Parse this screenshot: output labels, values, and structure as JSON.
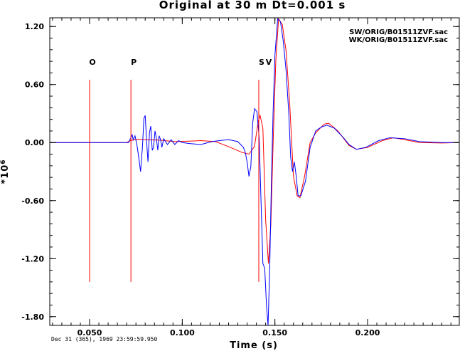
{
  "chart_data": {
    "type": "line",
    "title": "Original at 30 m Dt=0.001 s",
    "xlabel": "Time (s)",
    "ylabel": "*10",
    "ylabel_exponent": "6",
    "xlim": [
      0.0285,
      0.2495
    ],
    "ylim": [
      -1.89,
      1.29
    ],
    "x_ticks": [
      0.05,
      0.1,
      0.15,
      0.2
    ],
    "x_tick_labels": [
      "0.050",
      "0.100",
      "0.150",
      "0.200"
    ],
    "y_ticks": [
      1.2,
      0.6,
      0.0,
      -0.6,
      -1.2,
      -1.8
    ],
    "y_tick_labels": [
      "1.20",
      "0.60",
      "0.00",
      "-0.60",
      "-1.20",
      "-1.80"
    ],
    "date_label": "Dec 31 (365), 1969 23:59:59.950",
    "legend_position": "top-right",
    "markers": [
      {
        "label": "O",
        "x": 0.05,
        "y_top": 0.65,
        "y_bottom": -1.44
      },
      {
        "label": "P",
        "x": 0.0723,
        "y_top": 0.65,
        "y_bottom": -1.44
      },
      {
        "label": "S",
        "x": 0.1413,
        "y_top": 0.65,
        "y_bottom": -1.44
      }
    ],
    "extra_phase_label": "V",
    "series": [
      {
        "name": "SW/ORIG/B01511ZVF.sac",
        "color": "#ff0000",
        "points": [
          [
            0.0285,
            0.0
          ],
          [
            0.07,
            0.0
          ],
          [
            0.072,
            0.02
          ],
          [
            0.076,
            0.035
          ],
          [
            0.08,
            0.03
          ],
          [
            0.088,
            0.025
          ],
          [
            0.096,
            0.01
          ],
          [
            0.104,
            0.015
          ],
          [
            0.11,
            0.02
          ],
          [
            0.118,
            0.01
          ],
          [
            0.126,
            -0.05
          ],
          [
            0.132,
            -0.1
          ],
          [
            0.136,
            -0.12
          ],
          [
            0.139,
            -0.04
          ],
          [
            0.141,
            0.22
          ],
          [
            0.142,
            0.28
          ],
          [
            0.1435,
            0.15
          ],
          [
            0.145,
            -0.8
          ],
          [
            0.1465,
            -1.25
          ],
          [
            0.1478,
            -0.85
          ],
          [
            0.1492,
            0.1
          ],
          [
            0.1505,
            0.85
          ],
          [
            0.152,
            1.28
          ],
          [
            0.154,
            1.22
          ],
          [
            0.156,
            0.95
          ],
          [
            0.158,
            0.4
          ],
          [
            0.16,
            -0.35
          ],
          [
            0.162,
            -0.55
          ],
          [
            0.1635,
            -0.57
          ],
          [
            0.166,
            -0.35
          ],
          [
            0.169,
            0.0
          ],
          [
            0.172,
            0.1
          ],
          [
            0.1765,
            0.19
          ],
          [
            0.179,
            0.2
          ],
          [
            0.184,
            0.12
          ],
          [
            0.19,
            -0.03
          ],
          [
            0.194,
            -0.07
          ],
          [
            0.2,
            -0.05
          ],
          [
            0.208,
            0.02
          ],
          [
            0.214,
            0.05
          ],
          [
            0.22,
            0.03
          ],
          [
            0.228,
            0.0
          ],
          [
            0.24,
            -0.005
          ],
          [
            0.2495,
            0.0
          ]
        ]
      },
      {
        "name": "WK/ORIG/B01511ZVF.sac",
        "color": "#0000ff",
        "points": [
          [
            0.0285,
            0.0
          ],
          [
            0.071,
            0.0
          ],
          [
            0.072,
            0.04
          ],
          [
            0.073,
            0.08
          ],
          [
            0.0735,
            0.03
          ],
          [
            0.0745,
            0.07
          ],
          [
            0.0755,
            -0.02
          ],
          [
            0.0765,
            -0.15
          ],
          [
            0.0775,
            -0.3
          ],
          [
            0.0785,
            -0.05
          ],
          [
            0.0793,
            0.25
          ],
          [
            0.08,
            0.28
          ],
          [
            0.0808,
            0.0
          ],
          [
            0.0815,
            -0.2
          ],
          [
            0.0823,
            0.1
          ],
          [
            0.083,
            0.17
          ],
          [
            0.0838,
            -0.08
          ],
          [
            0.0845,
            -0.05
          ],
          [
            0.0853,
            0.12
          ],
          [
            0.086,
            0.05
          ],
          [
            0.0868,
            -0.08
          ],
          [
            0.0875,
            0.07
          ],
          [
            0.0883,
            0.03
          ],
          [
            0.089,
            -0.05
          ],
          [
            0.09,
            0.04
          ],
          [
            0.092,
            -0.02
          ],
          [
            0.094,
            0.03
          ],
          [
            0.096,
            -0.02
          ],
          [
            0.098,
            0.02
          ],
          [
            0.1,
            0.0
          ],
          [
            0.104,
            -0.01
          ],
          [
            0.11,
            -0.02
          ],
          [
            0.116,
            0.01
          ],
          [
            0.12,
            0.02
          ],
          [
            0.125,
            0.03
          ],
          [
            0.13,
            0.01
          ],
          [
            0.133,
            -0.05
          ],
          [
            0.134,
            -0.1
          ],
          [
            0.135,
            -0.2
          ],
          [
            0.136,
            -0.35
          ],
          [
            0.137,
            -0.25
          ],
          [
            0.138,
            0.2
          ],
          [
            0.139,
            0.35
          ],
          [
            0.1403,
            0.32
          ],
          [
            0.1415,
            0.05
          ],
          [
            0.1425,
            -0.6
          ],
          [
            0.1435,
            -1.25
          ],
          [
            0.1445,
            -1.3
          ],
          [
            0.1455,
            -1.7
          ],
          [
            0.1463,
            -1.89
          ],
          [
            0.1472,
            -1.3
          ],
          [
            0.148,
            -0.5
          ],
          [
            0.149,
            0.3
          ],
          [
            0.15,
            0.9
          ],
          [
            0.1515,
            1.28
          ],
          [
            0.153,
            1.25
          ],
          [
            0.1545,
            1.05
          ],
          [
            0.156,
            0.75
          ],
          [
            0.1575,
            0.3
          ],
          [
            0.1585,
            -0.15
          ],
          [
            0.1595,
            -0.3
          ],
          [
            0.1605,
            -0.2
          ],
          [
            0.1615,
            -0.35
          ],
          [
            0.1625,
            -0.55
          ],
          [
            0.164,
            -0.55
          ],
          [
            0.1665,
            -0.4
          ],
          [
            0.169,
            -0.05
          ],
          [
            0.172,
            0.12
          ],
          [
            0.175,
            0.16
          ],
          [
            0.178,
            0.18
          ],
          [
            0.182,
            0.15
          ],
          [
            0.187,
            0.05
          ],
          [
            0.19,
            -0.02
          ],
          [
            0.194,
            -0.07
          ],
          [
            0.199,
            -0.05
          ],
          [
            0.206,
            0.02
          ],
          [
            0.212,
            0.05
          ],
          [
            0.22,
            0.04
          ],
          [
            0.228,
            0.01
          ],
          [
            0.24,
            0.0
          ],
          [
            0.2495,
            0.0
          ]
        ]
      }
    ]
  }
}
